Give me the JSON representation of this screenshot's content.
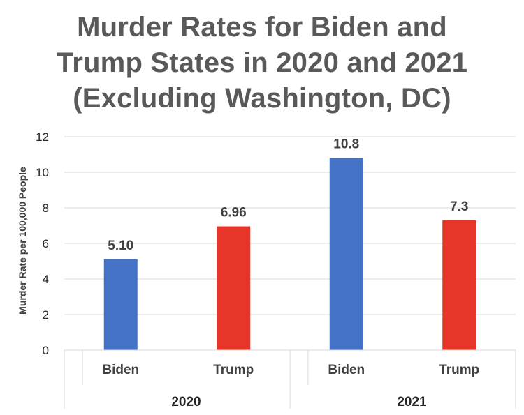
{
  "chart_data": {
    "type": "bar",
    "title_lines": [
      "Murder Rates for Biden and",
      "Trump States in 2020 and 2021",
      "(Excluding Washington, DC)"
    ],
    "ylabel": "Murder Rate per 100,000 People",
    "ylim": [
      0,
      12
    ],
    "yticks": [
      "0",
      "2",
      "4",
      "6",
      "8",
      "10",
      "12"
    ],
    "grid": true,
    "groups": [
      {
        "label": "2020",
        "bars": [
          {
            "category": "Biden",
            "value": 5.1,
            "label": "5.10",
            "color": "#4472C4"
          },
          {
            "category": "Trump",
            "value": 6.96,
            "label": "6.96",
            "color": "#E8352A"
          }
        ]
      },
      {
        "label": "2021",
        "bars": [
          {
            "category": "Biden",
            "value": 10.8,
            "label": "10.8",
            "color": "#4472C4"
          },
          {
            "category": "Trump",
            "value": 7.3,
            "label": "7.3",
            "color": "#E8352A"
          }
        ]
      }
    ]
  }
}
